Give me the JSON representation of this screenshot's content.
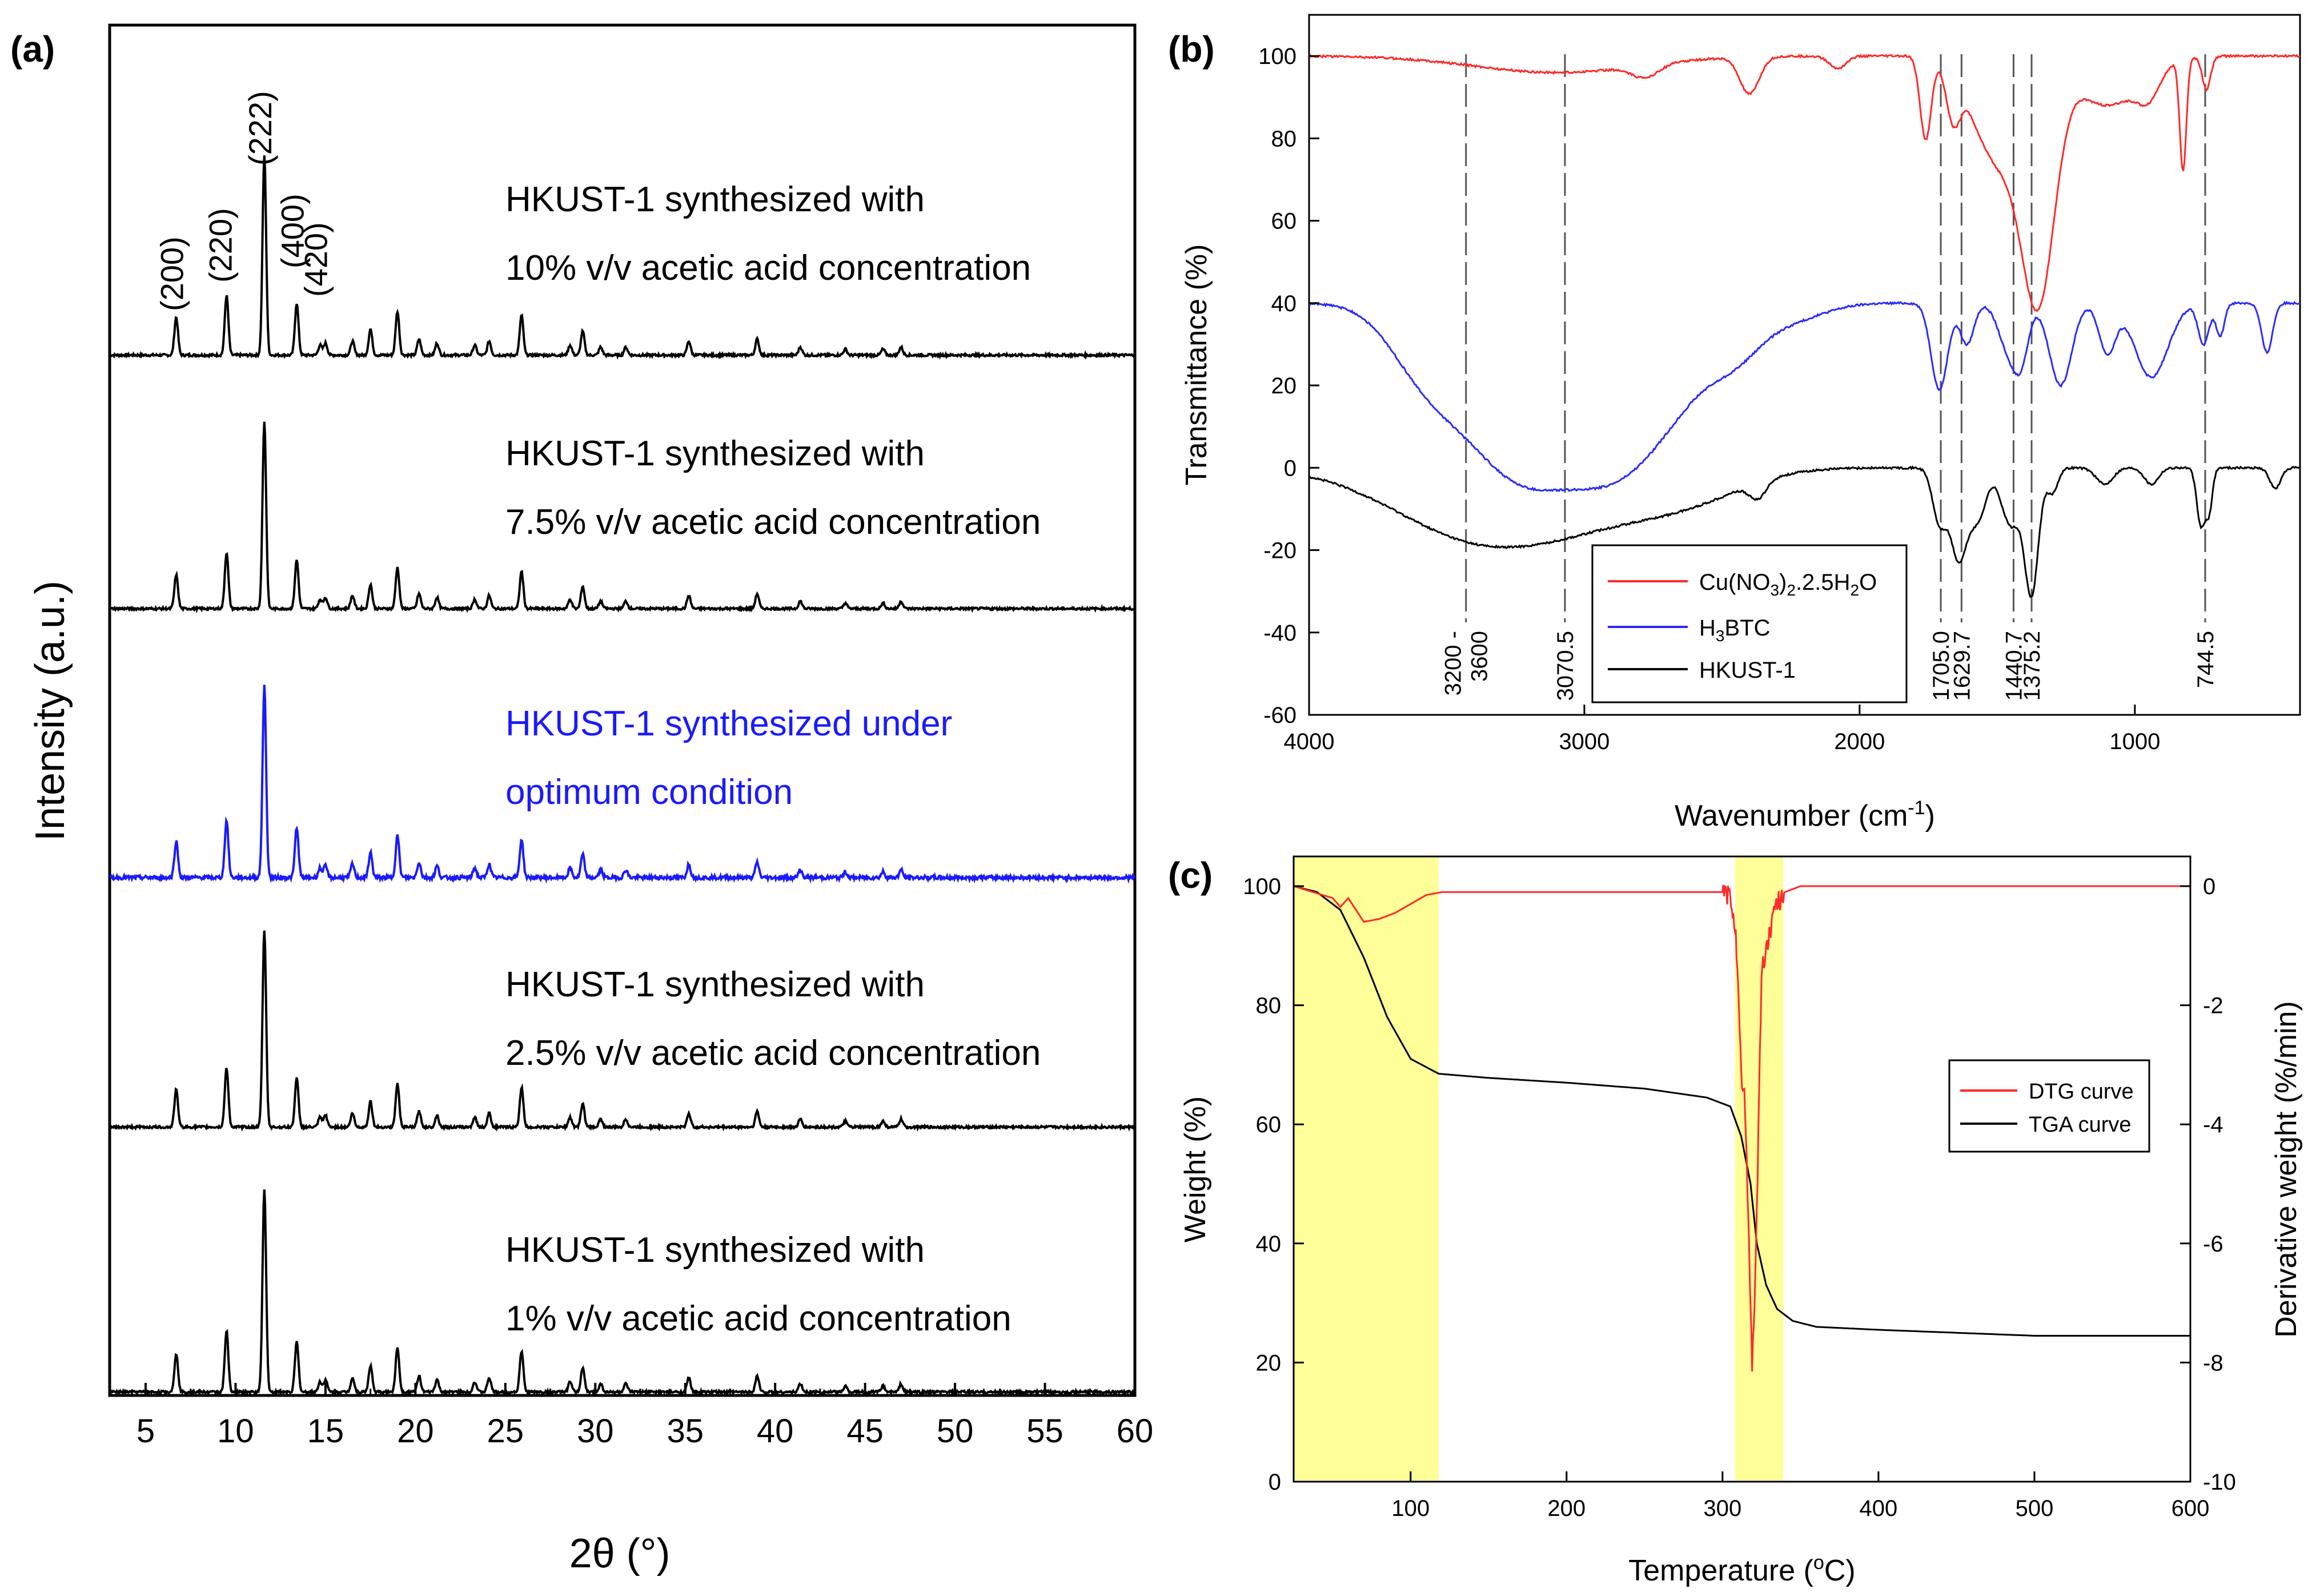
{
  "chart_data": [
    {
      "panel_label": "(a)",
      "type": "line",
      "title": "",
      "xlabel": "2θ (°)",
      "ylabel": "Intensity (a.u.)",
      "xlim": [
        3,
        60
      ],
      "xticks": [
        "5",
        "10",
        "15",
        "20",
        "25",
        "30",
        "35",
        "40",
        "45",
        "50",
        "55",
        "60"
      ],
      "peak_labels": [
        {
          "text": "(200)",
          "x": 6.7
        },
        {
          "text": "(220)",
          "x": 9.4
        },
        {
          "text": "(222)",
          "x": 11.6
        },
        {
          "text": "(400)",
          "x": 13.4
        },
        {
          "text": "(420)",
          "x": 14.7
        }
      ],
      "peaks": [
        {
          "x": 6.7,
          "h": 0.19
        },
        {
          "x": 9.5,
          "h": 0.3
        },
        {
          "x": 11.6,
          "h": 1.0
        },
        {
          "x": 13.4,
          "h": 0.26
        },
        {
          "x": 14.7,
          "h": 0.05
        },
        {
          "x": 15.0,
          "h": 0.06
        },
        {
          "x": 16.5,
          "h": 0.07
        },
        {
          "x": 17.5,
          "h": 0.13
        },
        {
          "x": 19.0,
          "h": 0.22
        },
        {
          "x": 20.2,
          "h": 0.08
        },
        {
          "x": 21.2,
          "h": 0.06
        },
        {
          "x": 23.3,
          "h": 0.05
        },
        {
          "x": 24.1,
          "h": 0.07
        },
        {
          "x": 25.9,
          "h": 0.2
        },
        {
          "x": 28.6,
          "h": 0.05
        },
        {
          "x": 29.3,
          "h": 0.12
        },
        {
          "x": 30.3,
          "h": 0.04
        },
        {
          "x": 31.7,
          "h": 0.04
        },
        {
          "x": 35.2,
          "h": 0.07
        },
        {
          "x": 39.0,
          "h": 0.08
        },
        {
          "x": 41.4,
          "h": 0.04
        },
        {
          "x": 43.9,
          "h": 0.03
        },
        {
          "x": 46.0,
          "h": 0.03
        },
        {
          "x": 47.0,
          "h": 0.04
        }
      ],
      "series": [
        {
          "name": "10%",
          "color": "#000000",
          "label_lines": [
            "HKUST-1 synthesized with",
            "10% v/v acetic acid concentration"
          ],
          "scale": 1.0,
          "p200": 1.0,
          "p222": 1.0,
          "p400": 1.0,
          "noise": 0.012
        },
        {
          "name": "7.5%",
          "color": "#000000",
          "label_lines": [
            "HKUST-1 synthesized with",
            "7.5% v/v acetic acid concentration"
          ],
          "scale": 1.0,
          "p200": 0.95,
          "p222": 1.0,
          "p400": 1.0,
          "noise": 0.012
        },
        {
          "name": "optimum",
          "color": "#1a1aff",
          "label_lines": [
            "HKUST-1 synthesized under",
            "optimum condition"
          ],
          "scale": 1.0,
          "p200": 1.0,
          "p222": 1.0,
          "p400": 1.0,
          "noise": 0.02
        },
        {
          "name": "2.5%",
          "color": "#000000",
          "label_lines": [
            "HKUST-1 synthesized with",
            "2.5% v/v acetic acid concentration"
          ],
          "scale": 1.0,
          "p200": 1.0,
          "p222": 1.0,
          "p400": 0.95,
          "noise": 0.012
        },
        {
          "name": "1%",
          "color": "#000000",
          "label_lines": [
            "HKUST-1 synthesized with",
            "1% v/v acetic acid concentration"
          ],
          "scale": 1.0,
          "p200": 1.0,
          "p222": 1.0,
          "p400": 0.95,
          "noise": 0.012
        }
      ]
    },
    {
      "panel_label": "(b)",
      "type": "line",
      "xlabel": "Wavenumber (cm⁻¹)",
      "ylabel": "Transmittance (%)",
      "xlim": [
        4000,
        400
      ],
      "ylim": [
        -60,
        110
      ],
      "xticks": [
        4000,
        3000,
        2000,
        1000
      ],
      "yticks": [
        -60,
        -40,
        -20,
        0,
        20,
        40,
        60,
        80,
        100
      ],
      "reference_lines": [
        {
          "x": 3430,
          "label_lines": [
            "3200 -",
            "3600"
          ]
        },
        {
          "x": 3070.5,
          "label_lines": [
            "3070.5"
          ]
        },
        {
          "x": 1705.0,
          "label_lines": [
            "1705.0"
          ]
        },
        {
          "x": 1629.7,
          "label_lines": [
            "1629.7"
          ]
        },
        {
          "x": 1440.7,
          "label_lines": [
            "1440.7"
          ]
        },
        {
          "x": 1375.2,
          "label_lines": [
            "1375.2"
          ]
        },
        {
          "x": 744.5,
          "label_lines": [
            "744.5"
          ]
        }
      ],
      "legend": {
        "position": "bottom-center",
        "entries": [
          {
            "name": "Cu(NO3)2.2.5H2O",
            "color": "#ff2a2a"
          },
          {
            "name": "H3BTC",
            "color": "#2b2bff"
          },
          {
            "name": "HKUST-1",
            "color": "#000000"
          }
        ]
      },
      "series": [
        {
          "name": "Cu(NO3)2.2.5H2O",
          "color": "#ff2a2a",
          "baseline": 100,
          "bands": [
            [
              3100,
              4,
              300
            ],
            [
              2780,
              3,
              50
            ],
            [
              2400,
              9,
              35
            ],
            [
              2080,
              3,
              30
            ],
            [
              1760,
              20,
              20
            ],
            [
              1660,
              12,
              25
            ],
            [
              1500,
              25,
              90
            ],
            [
              1350,
              54,
              60
            ],
            [
              1100,
              12,
              120
            ],
            [
              950,
              6,
              40
            ],
            [
              825,
              27,
              12
            ],
            [
              740,
              8,
              15
            ]
          ]
        },
        {
          "name": "H3BTC",
          "color": "#2b2bff",
          "baseline": 40,
          "bands": [
            [
              3600,
              8,
              120
            ],
            [
              3450,
              16,
              170
            ],
            [
              3250,
              20,
              160
            ],
            [
              3050,
              26,
              190
            ],
            [
              2850,
              22,
              150
            ],
            [
              2650,
              14,
              130
            ],
            [
              2450,
              10,
              100
            ],
            [
              2250,
              4,
              120
            ],
            [
              1710,
              21,
              30
            ],
            [
              1610,
              10,
              25
            ],
            [
              1450,
              13,
              40
            ],
            [
              1410,
              8,
              25
            ],
            [
              1270,
              20,
              40
            ],
            [
              1100,
              12,
              30
            ],
            [
              940,
              18,
              60
            ],
            [
              750,
              10,
              20
            ],
            [
              690,
              8,
              15
            ],
            [
              520,
              12,
              20
            ]
          ]
        },
        {
          "name": "HKUST-1",
          "color": "#000000",
          "baseline": 0,
          "bands": [
            [
              3400,
              16,
              300
            ],
            [
              2950,
              9,
              280
            ],
            [
              2600,
              5,
              200
            ],
            [
              2370,
              4,
              30
            ],
            [
              1710,
              13,
              25
            ],
            [
              1640,
              22,
              30
            ],
            [
              1570,
              12,
              30
            ],
            [
              1450,
              14,
              35
            ],
            [
              1375,
              30,
              25
            ],
            [
              1300,
              6,
              20
            ],
            [
              1110,
              4,
              30
            ],
            [
              940,
              4,
              25
            ],
            [
              760,
              14,
              15
            ],
            [
              730,
              10,
              12
            ],
            [
              490,
              5,
              20
            ]
          ]
        }
      ]
    },
    {
      "panel_label": "(c)",
      "type": "line",
      "xlabel": "Temperature (°C)",
      "ylabel": "Weight (%)",
      "y2label": "Derivative weight (%/min)",
      "xlim": [
        25,
        600
      ],
      "ylim": [
        0,
        100
      ],
      "y2lim": [
        -10,
        0
      ],
      "xticks": [
        100,
        200,
        300,
        400,
        500,
        600
      ],
      "yticks": [
        0,
        20,
        40,
        60,
        80,
        100
      ],
      "y2ticks": [
        -10,
        -8,
        -6,
        -4,
        -2,
        0
      ],
      "highlight_ranges": [
        [
          25,
          118
        ],
        [
          308,
          339
        ]
      ],
      "highlight_color": "#ffff99",
      "legend": {
        "position": "top-right",
        "entries": [
          {
            "name": "DTG curve",
            "color": "#ff2a2a"
          },
          {
            "name": "TGA curve",
            "color": "#000000"
          }
        ]
      },
      "tga": {
        "x": [
          25,
          40,
          55,
          70,
          85,
          100,
          118,
          150,
          200,
          250,
          290,
          305,
          312,
          318,
          322,
          328,
          335,
          345,
          360,
          400,
          450,
          500,
          600
        ],
        "y": [
          100,
          99,
          96,
          88,
          78,
          71,
          68.5,
          67.8,
          67,
          66,
          64.5,
          63,
          58,
          50,
          40,
          33,
          29,
          27,
          26,
          25.5,
          25,
          24.5,
          24.5
        ]
      },
      "dtg": {
        "x": [
          25,
          50,
          55,
          60,
          65,
          70,
          80,
          90,
          100,
          110,
          120,
          200,
          300,
          305,
          308,
          310,
          312,
          314,
          316,
          318,
          319,
          320,
          322,
          325,
          330,
          335,
          340,
          350,
          600
        ],
        "y": [
          0,
          -0.2,
          -0.35,
          -0.2,
          -0.4,
          -0.6,
          -0.55,
          -0.45,
          -0.3,
          -0.15,
          -0.1,
          -0.1,
          -0.1,
          -0.2,
          -0.6,
          -1.8,
          -3.2,
          -3.5,
          -5.0,
          -7.0,
          -8.1,
          -7.4,
          -5.5,
          -1.5,
          -0.8,
          -0.3,
          -0.1,
          0,
          0
        ]
      }
    }
  ]
}
